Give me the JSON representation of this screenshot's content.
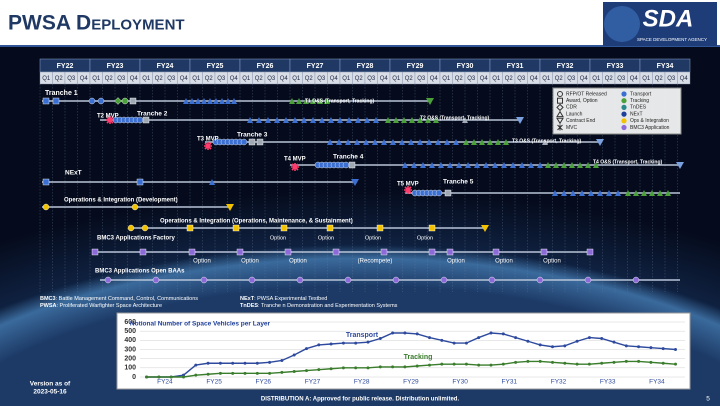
{
  "header": {
    "title": "PWSA Deployment",
    "logo": "SDA",
    "logo_sub": "SPACE DEVELOPMENT AGENCY"
  },
  "timeline": {
    "years": [
      "FY22",
      "FY23",
      "FY24",
      "FY25",
      "FY26",
      "FY27",
      "FY28",
      "FY29",
      "FY30",
      "FY31",
      "FY32",
      "FY33",
      "FY34"
    ],
    "quarters": [
      "Q1",
      "Q2",
      "Q3",
      "Q4"
    ],
    "labels": [
      "Tranche 1",
      "T1 O&S (Transport, Tracking)",
      "T2 MVP",
      "Tranche 2",
      "T2 O&S (Transport, Tracking)",
      "T3 MVP",
      "Tranche 3",
      "T3 O&S (Transport, Tracking)",
      "T4 MVP",
      "Tranche 4",
      "T4 O&S (Transport, Tracking)",
      "NExT",
      "T5 MVP",
      "Tranche 5",
      "Operations & Integration (Development)",
      "Operations & Integration (Operations, Maintenance, & Sustainment)",
      "BMC3 Applications Factory",
      "BMC3 Applications Open BAAs"
    ],
    "option": "Option",
    "recompete": "(Recompete)",
    "legend": {
      "events": [
        "RFP/OT Released",
        "Award, Option",
        "CDR",
        "Launch",
        "Contract End",
        "MVC"
      ],
      "layers": [
        "Transport",
        "Tracking",
        "TnDES",
        "NExT",
        "Ops & Integration",
        "BMC3 Application"
      ]
    }
  },
  "footnotes": [
    {
      "term": "BMC3",
      "text": ": Battle Management Command, Control, Communications"
    },
    {
      "term": "PWSA",
      "text": ": Proliferated Warfighter Space Architecture"
    },
    {
      "term": "NExT",
      "text": ": PWSA Experimental Testbed"
    },
    {
      "term": "TnDES",
      "text": ": Tranche n Demonstration and Experimentation Systems"
    }
  ],
  "chart": {
    "type": "line",
    "title": "Notional Number of Space Vehicles per Layer",
    "categories": [
      null,
      "FY24",
      null,
      null,
      null,
      "FY25",
      null,
      null,
      null,
      "FY26",
      null,
      null,
      null,
      "FY27",
      null,
      null,
      null,
      "FY28",
      null,
      null,
      null,
      "FY29",
      null,
      null,
      null,
      "FY30",
      null,
      null,
      null,
      "FY31",
      null,
      null,
      null,
      "FY32",
      null,
      null,
      null,
      "FY33",
      null,
      null,
      null,
      "FY34",
      null,
      null
    ],
    "series": [
      {
        "name": "Transport",
        "color": "#2e4a9e",
        "values": [
          0,
          0,
          0,
          20,
          130,
          150,
          150,
          150,
          150,
          150,
          160,
          180,
          240,
          310,
          350,
          360,
          370,
          370,
          380,
          420,
          480,
          480,
          470,
          430,
          400,
          370,
          370,
          430,
          480,
          470,
          430,
          390,
          350,
          330,
          340,
          390,
          430,
          420,
          380,
          340,
          330,
          320,
          310,
          300
        ]
      },
      {
        "name": "Tracking",
        "color": "#3a7d2c",
        "values": [
          0,
          0,
          0,
          0,
          20,
          30,
          40,
          40,
          40,
          40,
          40,
          50,
          60,
          70,
          80,
          90,
          100,
          100,
          100,
          110,
          110,
          110,
          120,
          130,
          140,
          140,
          140,
          130,
          130,
          140,
          160,
          170,
          170,
          160,
          150,
          140,
          140,
          150,
          160,
          170,
          170,
          160,
          150,
          140
        ]
      }
    ],
    "ylim": [
      0,
      600
    ],
    "yticks": [
      0,
      100,
      200,
      300,
      400,
      500,
      600
    ],
    "grid": true
  },
  "footer": {
    "version": [
      "Version as of",
      "2023-05-16"
    ],
    "distribution": "DISTRIBUTION A: Approved for public release. Distribution unlimited.",
    "page": "5"
  }
}
